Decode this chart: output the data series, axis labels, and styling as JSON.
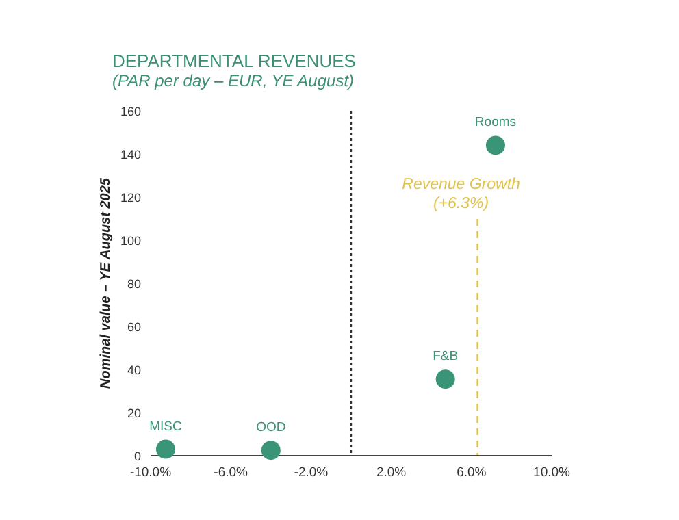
{
  "chart_data": {
    "type": "scatter",
    "title": "DEPARTMENTAL REVENUES",
    "subtitle": "(PAR per day – EUR, YE August)",
    "ylabel": "Nominal value – YE August 2025",
    "series": [
      {
        "color": "#3a9478",
        "x": [
          -9.25,
          -4.0,
          4.7,
          7.2
        ],
        "values": [
          3,
          2.5,
          35.5,
          144
        ]
      }
    ],
    "annotations": [
      {
        "text": "MISC",
        "x": -9.25,
        "y": 3
      },
      {
        "text": "OOD",
        "x": -4.0,
        "y": 2.5
      },
      {
        "text": "F&B",
        "x": 4.7,
        "y": 35.5
      },
      {
        "text": "Rooms",
        "x": 7.2,
        "y": 144
      }
    ],
    "ref_lines": [
      {
        "axis": "x",
        "value": 0,
        "color": "#333333",
        "line_style": "dotted"
      },
      {
        "axis": "x",
        "value": 6.3,
        "label": "Revenue Growth\n(+6.3%)",
        "color": "#e2c34e",
        "line_style": "dashed"
      }
    ],
    "xlim": [
      -10,
      10
    ],
    "ylim": [
      0,
      160
    ],
    "xticks": [
      {
        "value": -10,
        "label": "-10.0%"
      },
      {
        "value": -6,
        "label": "-6.0%"
      },
      {
        "value": -2,
        "label": "-2.0%"
      },
      {
        "value": 2,
        "label": "2.0%"
      },
      {
        "value": 6,
        "label": "6.0%"
      },
      {
        "value": 10,
        "label": "10.0%"
      }
    ],
    "yticks": [
      0,
      20,
      40,
      60,
      80,
      100,
      120,
      140,
      160
    ],
    "grid": false,
    "marker": "circle"
  }
}
